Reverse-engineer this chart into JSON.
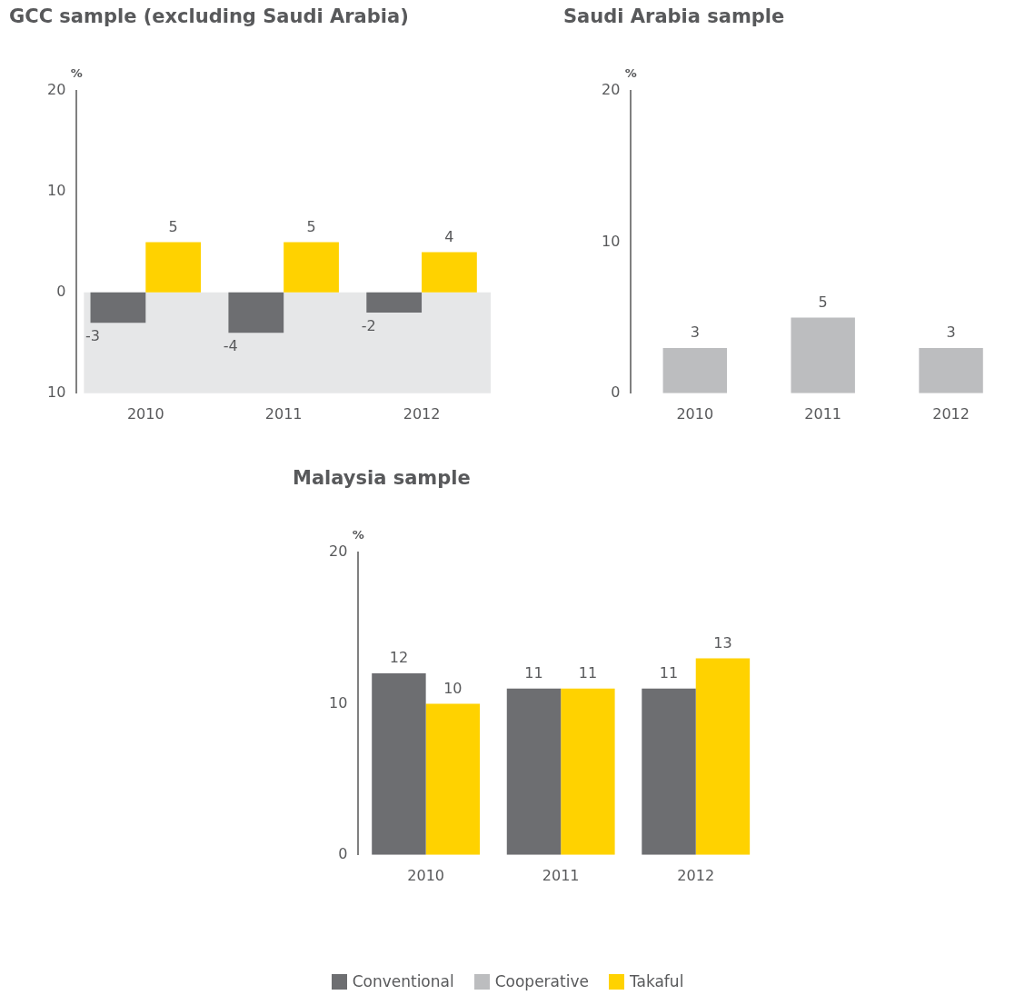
{
  "chart_data": [
    {
      "type": "bar",
      "title": "GCC sample (excluding Saudi Arabia)",
      "ylabel": "%",
      "categories": [
        "2010",
        "2011",
        "2012"
      ],
      "series": [
        {
          "name": "Conventional",
          "color": "#6d6e71",
          "values": [
            -3,
            -4,
            -2
          ]
        },
        {
          "name": "Takaful",
          "color": "#ffd200",
          "values": [
            5,
            5,
            4
          ]
        }
      ],
      "ylim": [
        -10,
        20
      ],
      "yticks": [
        {
          "value": -10,
          "label": "10"
        },
        0,
        10,
        20
      ],
      "bands": [
        {
          "axis": "y",
          "from": -10,
          "to": 0,
          "color": "#e6e7e8"
        }
      ],
      "grid": false,
      "data_labels": true,
      "legend": "bottom"
    },
    {
      "type": "bar",
      "title": "Saudi Arabia sample",
      "ylabel": "%",
      "categories": [
        "2010",
        "2011",
        "2012"
      ],
      "series": [
        {
          "name": "Cooperative",
          "color": "#bcbdbf",
          "values": [
            3,
            5,
            3
          ]
        }
      ],
      "ylim": [
        0,
        20
      ],
      "yticks": [
        0,
        10,
        20
      ],
      "grid": false,
      "data_labels": true,
      "legend": "bottom"
    },
    {
      "type": "bar",
      "title": "Malaysia sample",
      "ylabel": "%",
      "categories": [
        "2010",
        "2011",
        "2012"
      ],
      "series": [
        {
          "name": "Conventional",
          "color": "#6d6e71",
          "values": [
            12,
            11,
            11
          ]
        },
        {
          "name": "Takaful",
          "color": "#ffd200",
          "values": [
            10,
            11,
            13
          ]
        }
      ],
      "ylim": [
        0,
        20
      ],
      "yticks": [
        0,
        10,
        20
      ],
      "grid": false,
      "data_labels": true,
      "legend": "bottom"
    }
  ]
}
